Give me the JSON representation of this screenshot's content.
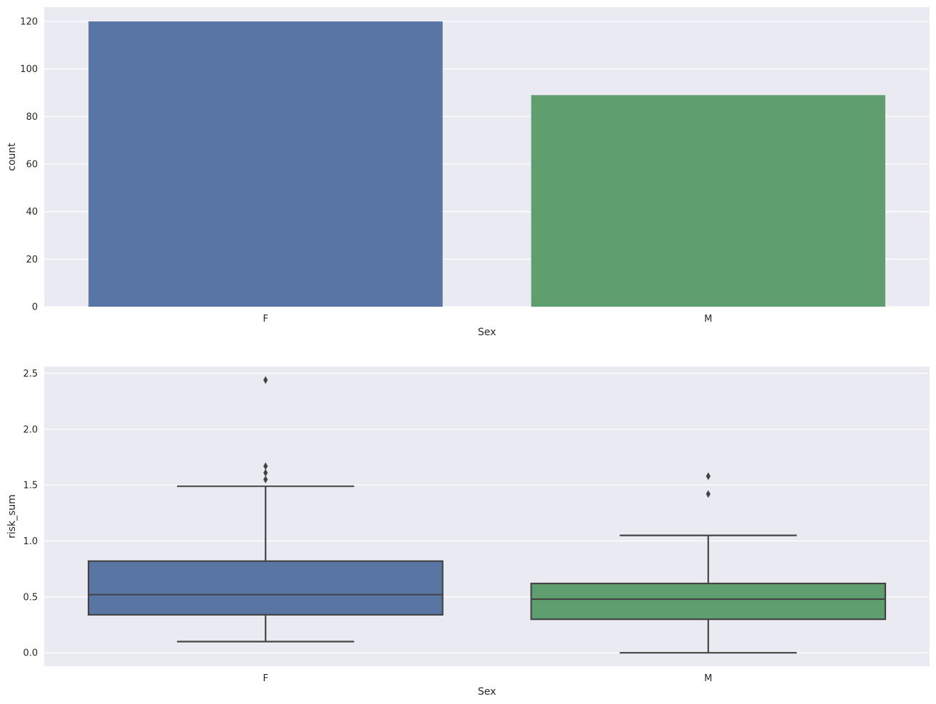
{
  "chart_data": [
    {
      "type": "bar",
      "categories": [
        "F",
        "M"
      ],
      "values": [
        120,
        89
      ],
      "colors": [
        "#5975a4",
        "#5f9e6e"
      ],
      "xlabel": "Sex",
      "ylabel": "count",
      "ylim": [
        0,
        126
      ],
      "yticks": [
        0,
        20,
        40,
        60,
        80,
        100,
        120
      ],
      "ytick_labels": [
        "0",
        "20",
        "40",
        "60",
        "80",
        "100",
        "120"
      ],
      "grid": true,
      "background": "#eaeaf2"
    },
    {
      "type": "box",
      "categories": [
        "F",
        "M"
      ],
      "boxes": [
        {
          "name": "F",
          "whisker_low": 0.1,
          "q1": 0.34,
          "median": 0.52,
          "q3": 0.82,
          "whisker_high": 1.49,
          "outliers": [
            1.55,
            1.61,
            1.67,
            2.44
          ]
        },
        {
          "name": "M",
          "whisker_low": 0.0,
          "q1": 0.3,
          "median": 0.48,
          "q3": 0.62,
          "whisker_high": 1.05,
          "outliers": [
            1.42,
            1.58
          ]
        }
      ],
      "colors": [
        "#5975a4",
        "#5f9e6e"
      ],
      "xlabel": "Sex",
      "ylabel": "risk_sum",
      "ylim": [
        -0.12,
        2.56
      ],
      "yticks": [
        0.0,
        0.5,
        1.0,
        1.5,
        2.0,
        2.5
      ],
      "ytick_labels": [
        "0.0",
        "0.5",
        "1.0",
        "1.5",
        "2.0",
        "2.5"
      ],
      "grid": true,
      "background": "#eaeaf2"
    }
  ]
}
